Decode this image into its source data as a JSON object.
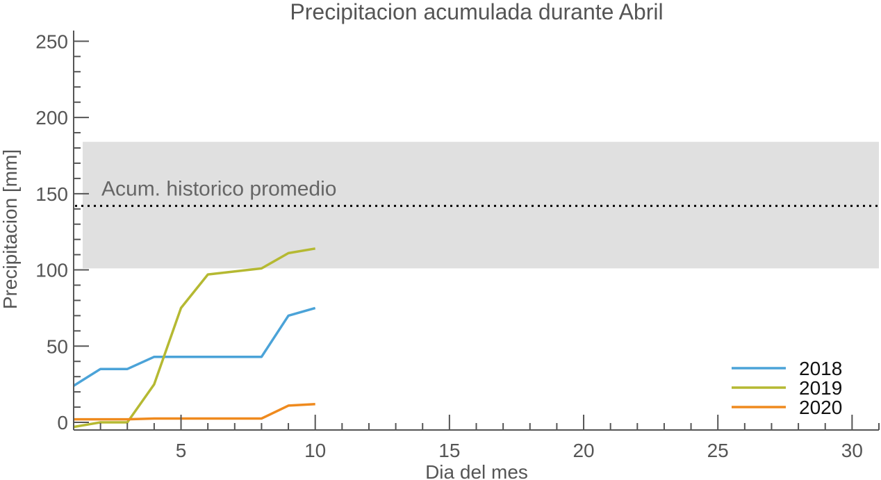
{
  "chart_data": {
    "type": "line",
    "title": "Precipitacion acumulada durante Abril",
    "xlabel": "Dia del mes",
    "ylabel": "Precipitacion [mm]",
    "xlim": [
      1,
      31
    ],
    "ylim": [
      -5,
      257
    ],
    "x_ticks": [
      5,
      10,
      15,
      20,
      25,
      30
    ],
    "y_ticks": [
      0,
      50,
      100,
      150,
      200,
      250
    ],
    "grid": false,
    "legend_position": "bottom-right",
    "historical_band": {
      "low": 101,
      "high": 184,
      "color": "#e0e0e0"
    },
    "historical_mean": {
      "value": 142,
      "label": "Acum. historico promedio"
    },
    "series": [
      {
        "name": "2018",
        "color": "#4ba3d8",
        "x": [
          1,
          2,
          3,
          4,
          5,
          6,
          7,
          8,
          9,
          10
        ],
        "y": [
          24,
          35,
          35,
          43,
          43,
          43,
          43,
          43,
          70,
          75
        ]
      },
      {
        "name": "2019",
        "color": "#b5b932",
        "x": [
          1,
          2,
          3,
          4,
          5,
          6,
          7,
          8,
          9,
          10
        ],
        "y": [
          -3,
          0,
          0,
          25,
          75,
          97,
          99,
          101,
          111,
          114
        ]
      },
      {
        "name": "2020",
        "color": "#ef8a1e",
        "x": [
          1,
          2,
          3,
          4,
          5,
          6,
          7,
          8,
          9,
          10
        ],
        "y": [
          2,
          2,
          2,
          2.5,
          2.5,
          2.5,
          2.5,
          2.5,
          11,
          12
        ]
      }
    ]
  }
}
